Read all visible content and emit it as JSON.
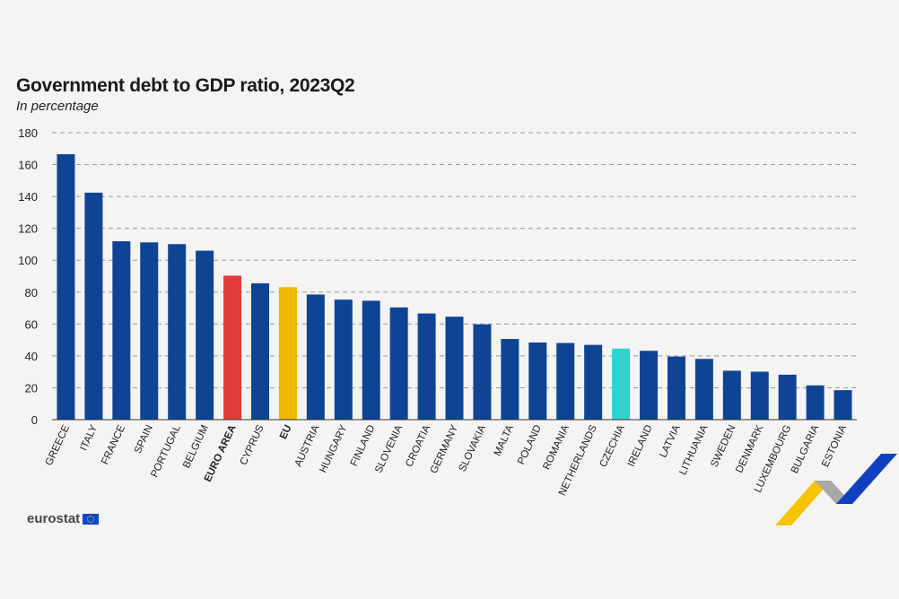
{
  "header": {
    "title": "Government debt to GDP ratio, 2023Q2",
    "subtitle": "In percentage"
  },
  "brand": {
    "logo_text": "eurostat",
    "flag_icon": "eu-flag-icon",
    "swoosh_icon": "eurostat-swoosh-icon",
    "swoosh_colors": [
      "#f6c400",
      "#1040c0",
      "#9a9a9a"
    ]
  },
  "colors": {
    "default": "#0f4495",
    "euro_area": "#e23b3b",
    "eu": "#efb700",
    "czechia": "#30d2cc",
    "grid": "#999999"
  },
  "chart_data": {
    "type": "bar",
    "title": "Government debt to GDP ratio, 2023Q2",
    "subtitle": "In percentage",
    "ylim": [
      0,
      180
    ],
    "yticks": [
      0,
      20,
      40,
      60,
      80,
      100,
      120,
      140,
      160,
      180
    ],
    "grid": true,
    "categories": [
      "GREECE",
      "ITALY",
      "FRANCE",
      "SPAIN",
      "PORTUGAL",
      "BELGIUM",
      "EURO AREA",
      "CYPRUS",
      "EU",
      "AUSTRIA",
      "HUNGARY",
      "FINLAND",
      "SLOVENIA",
      "CROATIA",
      "GERMANY",
      "SLOVAKIA",
      "MALTA",
      "POLAND",
      "ROMANIA",
      "NETHERLANDS",
      "CZECHIA",
      "IRELAND",
      "LATVIA",
      "LITHUANIA",
      "SWEDEN",
      "DENMARK",
      "LUXEMBOURG",
      "BULGARIA",
      "ESTONIA"
    ],
    "values": [
      166.5,
      142.4,
      111.9,
      111.2,
      110.1,
      106.0,
      90.3,
      85.5,
      83.1,
      78.5,
      75.3,
      74.6,
      70.4,
      66.6,
      64.6,
      59.8,
      50.6,
      48.4,
      48.1,
      46.9,
      44.6,
      43.2,
      39.6,
      38.1,
      30.7,
      30.1,
      28.2,
      21.5,
      18.5
    ],
    "bold_categories": [
      "EURO AREA",
      "EU"
    ]
  }
}
